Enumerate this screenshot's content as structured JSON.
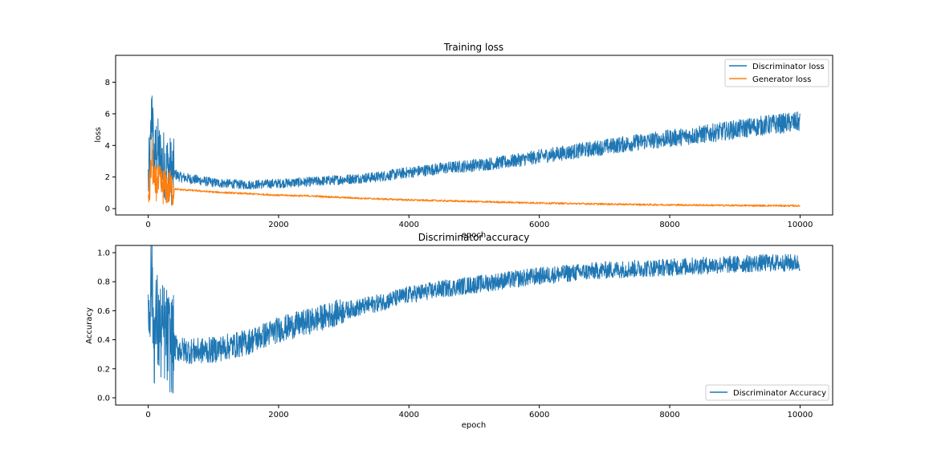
{
  "chart_data": [
    {
      "type": "line",
      "title": "Training loss",
      "xlabel": "epoch",
      "ylabel": "loss",
      "xlim": [
        -500,
        10500
      ],
      "ylim": [
        -0.4,
        9.7
      ],
      "xticks": [
        0,
        2000,
        4000,
        6000,
        8000,
        10000
      ],
      "yticks": [
        0,
        2,
        4,
        6,
        8
      ],
      "legend_position": "top-right",
      "grid": false,
      "series": [
        {
          "name": "Discriminator loss",
          "color": "#1f77b4",
          "x": [
            0,
            30,
            60,
            80,
            100,
            130,
            160,
            200,
            250,
            300,
            400,
            500,
            700,
            1000,
            1500,
            2000,
            2500,
            3000,
            3500,
            4000,
            4500,
            5000,
            5500,
            6000,
            6500,
            7000,
            7500,
            8000,
            8500,
            9000,
            9500,
            10000
          ],
          "y": [
            1.8,
            3.0,
            7.0,
            3.5,
            2.8,
            4.0,
            3.4,
            3.0,
            2.8,
            2.6,
            2.2,
            2.0,
            1.85,
            1.65,
            1.5,
            1.6,
            1.7,
            1.85,
            2.0,
            2.3,
            2.55,
            2.75,
            2.95,
            3.3,
            3.6,
            3.9,
            4.2,
            4.45,
            4.7,
            5.0,
            5.3,
            5.5
          ]
        },
        {
          "name": "Generator loss",
          "color": "#ff7f0e",
          "x": [
            0,
            30,
            60,
            80,
            100,
            130,
            160,
            200,
            250,
            300,
            400,
            500,
            700,
            1000,
            1500,
            2000,
            2500,
            3000,
            3500,
            4000,
            4500,
            5000,
            5500,
            6000,
            6500,
            7000,
            7500,
            8000,
            8500,
            9000,
            9500,
            10000
          ],
          "y": [
            0.8,
            1.6,
            3.5,
            1.8,
            1.5,
            1.7,
            1.6,
            1.5,
            1.4,
            1.3,
            1.25,
            1.2,
            1.15,
            1.05,
            0.95,
            0.85,
            0.8,
            0.7,
            0.62,
            0.55,
            0.5,
            0.45,
            0.4,
            0.36,
            0.32,
            0.29,
            0.26,
            0.24,
            0.22,
            0.2,
            0.19,
            0.18
          ]
        }
      ]
    },
    {
      "type": "line",
      "title": "Discriminator accuracy",
      "xlabel": "epoch",
      "ylabel": "Accuracy",
      "xlim": [
        -500,
        10500
      ],
      "ylim": [
        -0.05,
        1.05
      ],
      "xticks": [
        0,
        2000,
        4000,
        6000,
        8000,
        10000
      ],
      "yticks": [
        0.0,
        0.2,
        0.4,
        0.6,
        0.8,
        1.0
      ],
      "legend_position": "bottom-right",
      "grid": false,
      "series": [
        {
          "name": "Discriminator Accuracy",
          "color": "#1f77b4",
          "x": [
            0,
            30,
            60,
            80,
            100,
            130,
            160,
            200,
            250,
            300,
            400,
            500,
            700,
            1000,
            1500,
            2000,
            2500,
            3000,
            3500,
            4000,
            4500,
            5000,
            5500,
            6000,
            6500,
            7000,
            7500,
            8000,
            8500,
            9000,
            9500,
            10000
          ],
          "y": [
            0.55,
            0.75,
            0.85,
            0.5,
            0.4,
            0.55,
            0.45,
            0.45,
            0.45,
            0.4,
            0.35,
            0.33,
            0.32,
            0.33,
            0.38,
            0.47,
            0.53,
            0.6,
            0.65,
            0.71,
            0.75,
            0.78,
            0.81,
            0.84,
            0.86,
            0.88,
            0.89,
            0.9,
            0.91,
            0.92,
            0.93,
            0.93
          ]
        }
      ]
    }
  ]
}
